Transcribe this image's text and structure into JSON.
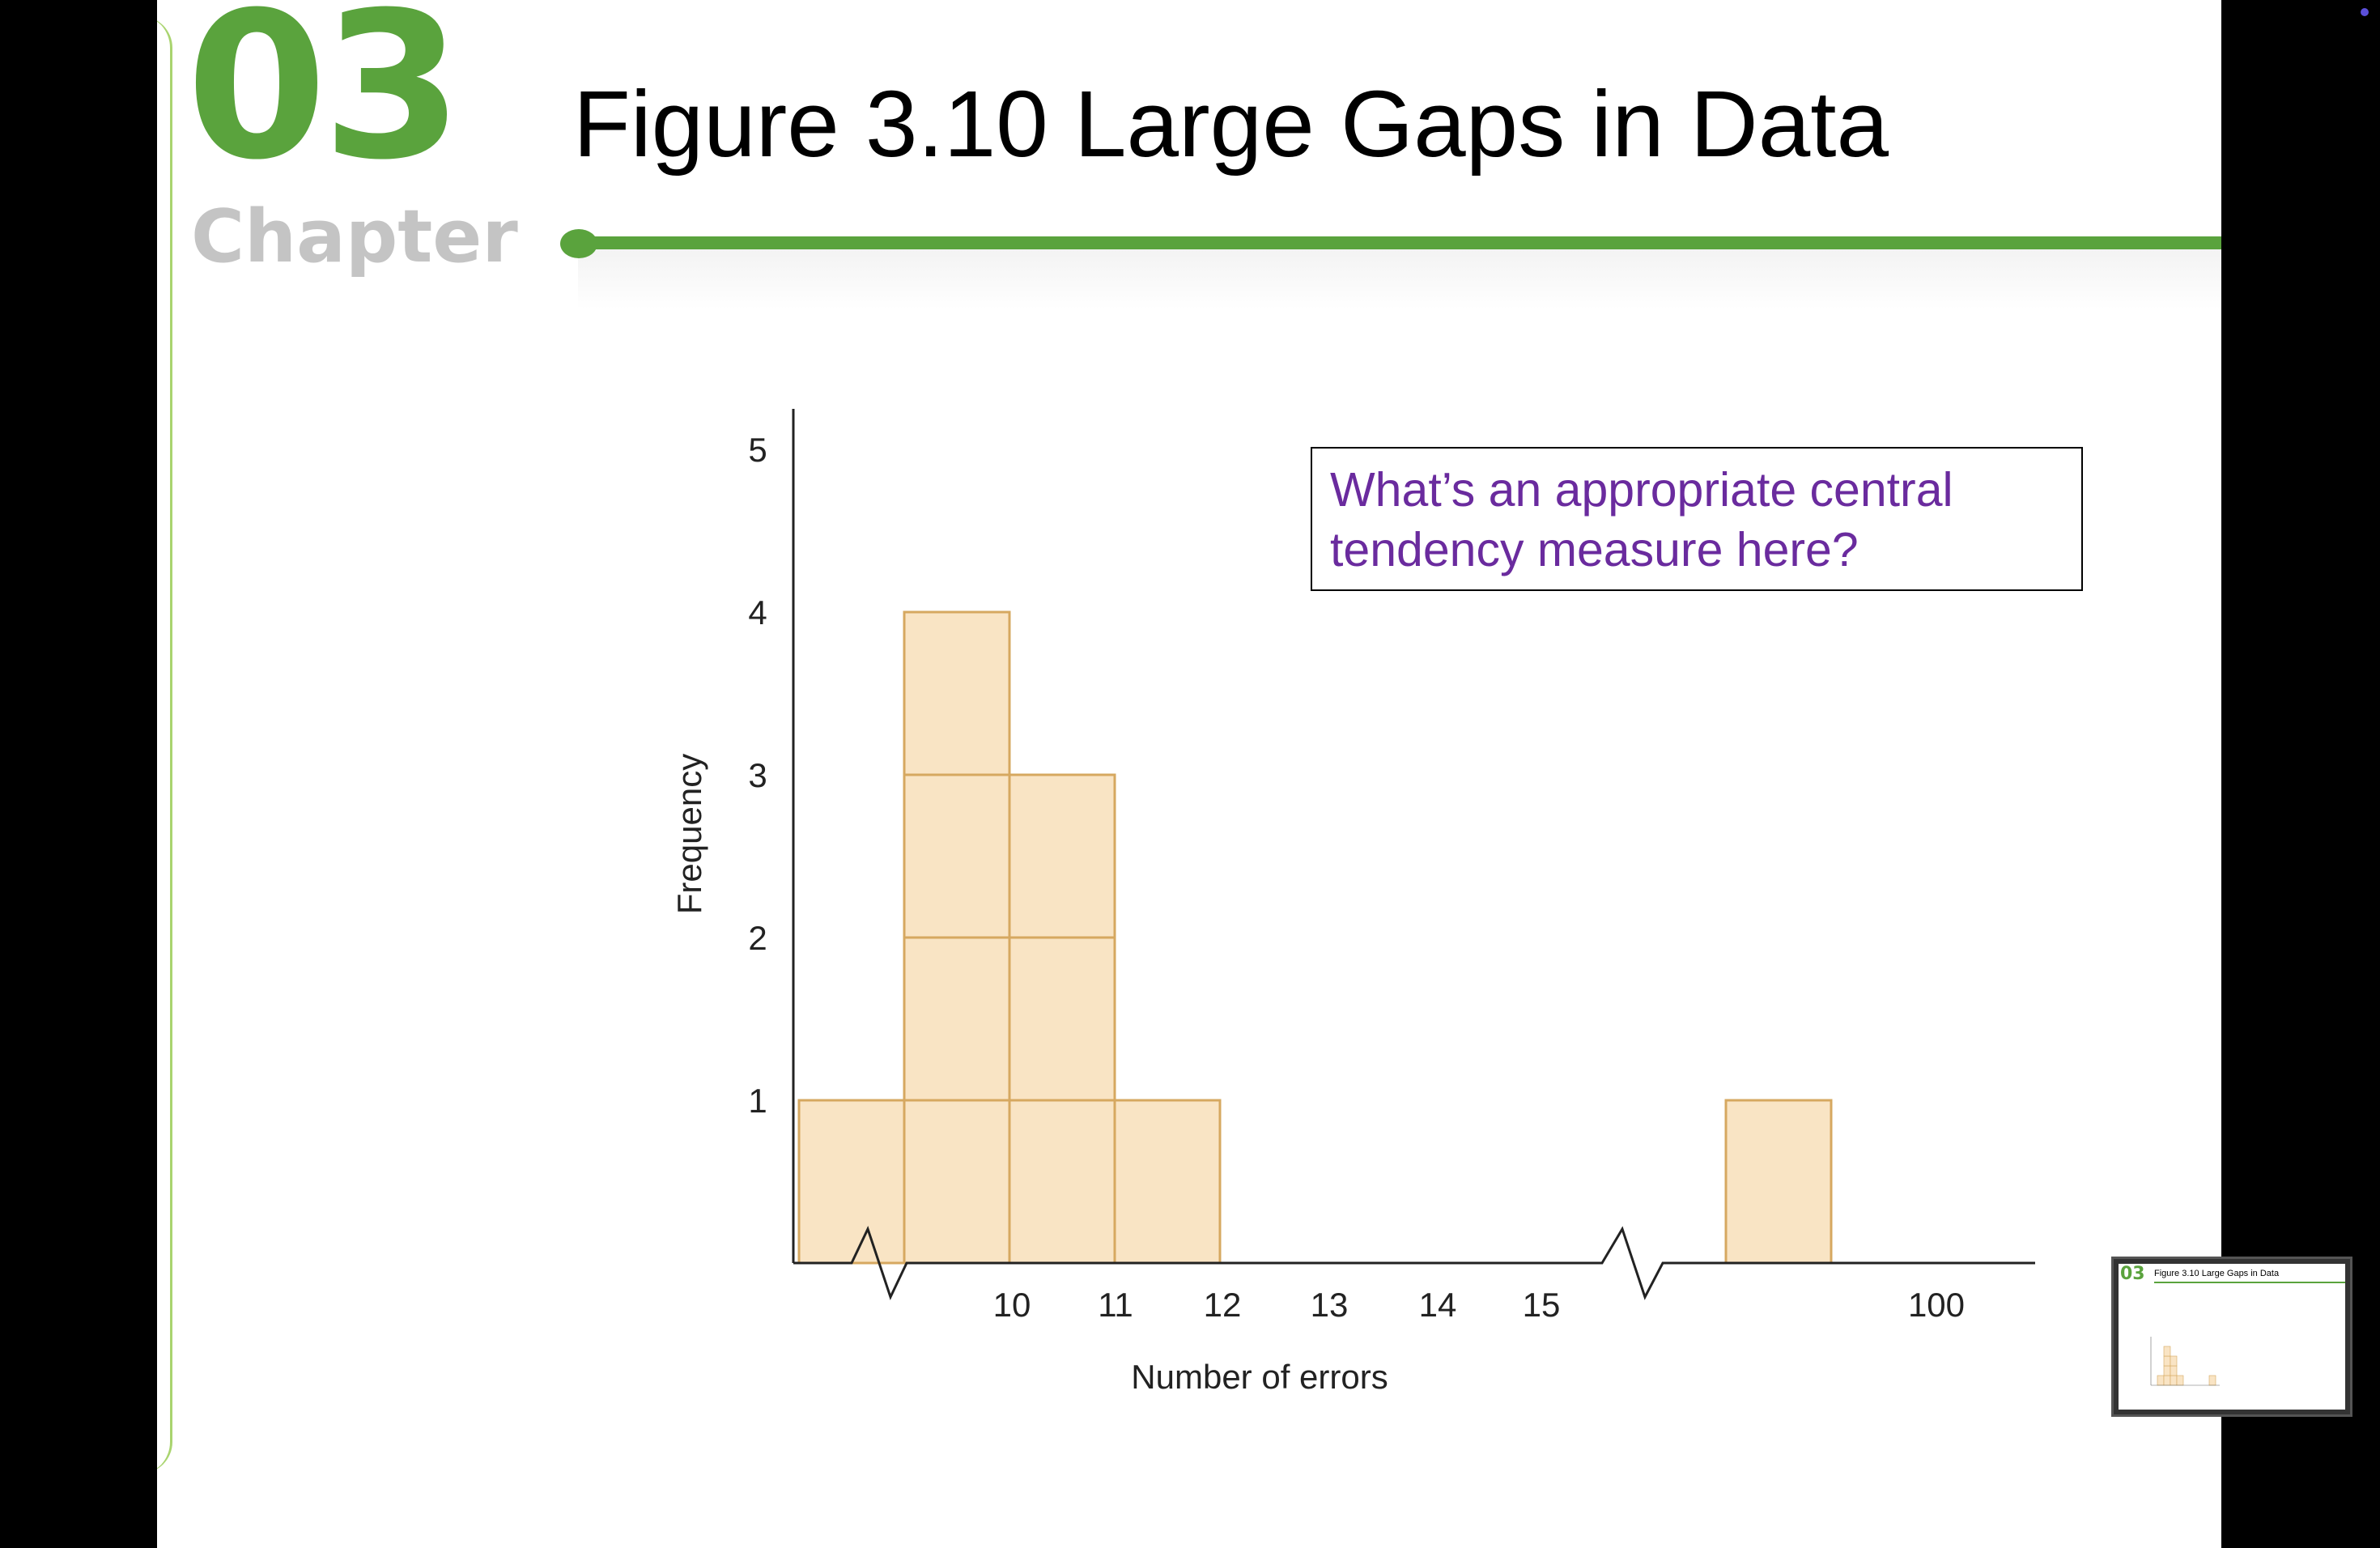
{
  "slide": {
    "chapter_number": "03",
    "chapter_word": "Chapter",
    "title": "Figure 3.10 Large Gaps in Data",
    "callout": "What’s an appropriate central tendency measure here?"
  },
  "colors": {
    "accent_green": "#5aa33d",
    "bar_fill": "#f9e4c4",
    "bar_edge": "#d6a860",
    "callout_text": "#6a2b9e"
  },
  "chart_data": {
    "type": "bar",
    "categories": [
      "10",
      "11",
      "12",
      "13",
      "14",
      "15",
      "100"
    ],
    "values": [
      1,
      4,
      3,
      1,
      0,
      0,
      1
    ],
    "title": "",
    "xlabel": "Number of errors",
    "ylabel": "Frequency",
    "ylim": [
      0,
      5
    ],
    "yticks": [
      "1",
      "2",
      "3",
      "4",
      "5"
    ],
    "grid": false,
    "legend": "none",
    "axis_breaks": [
      "before 10",
      "between 15 and 100"
    ],
    "style": "stacked unit boxes"
  },
  "thumbnail": {
    "number": "03",
    "title": "Figure 3.10 Large Gaps in Data"
  }
}
